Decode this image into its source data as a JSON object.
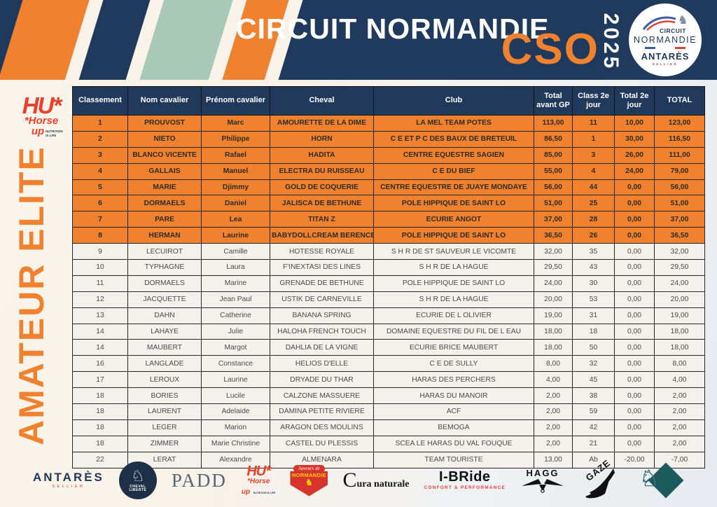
{
  "banner": {
    "title": "CIRCUIT NORMANDIE",
    "event": "CSO",
    "year": "2025",
    "badge": {
      "circuit": "CIRCUIT",
      "normandie": "NORMANDIE",
      "brand": "ANTARÈS",
      "brand_sub": "SELLIER"
    }
  },
  "sidebar": {
    "logo": {
      "monogram": "HU*",
      "word1": "*Horse",
      "word2": "up",
      "tagline": "NUTRITION IS LIFE"
    },
    "category": "AMATEUR ELITE"
  },
  "colors": {
    "navy": "#1f3a5c",
    "orange": "#f0812e",
    "sage": "#a9c9b8",
    "cream": "#f8f2e8"
  },
  "table": {
    "columns": [
      "Classement",
      "Nom cavalier",
      "Prénom cavalier",
      "Cheval",
      "Club",
      "Total avant GP",
      "Class 2e jour",
      "Total 2e jour",
      "TOTAL"
    ],
    "highlight_count": 8,
    "rows": [
      [
        "1",
        "PROUVOST",
        "Marc",
        "AMOURETTE DE LA DIME",
        "LA MEL TEAM POTES",
        "113,00",
        "11",
        "10,00",
        "123,00"
      ],
      [
        "2",
        "NIETO",
        "Philippe",
        "HORN",
        "C E ET P C DES BAUX DE BRETEUIL",
        "86,50",
        "1",
        "30,00",
        "116,50"
      ],
      [
        "3",
        "BLANCO VICENTE",
        "Rafael",
        "HADITA",
        "CENTRE EQUESTRE SAGIEN",
        "85,00",
        "3",
        "26,00",
        "111,00"
      ],
      [
        "4",
        "GALLAIS",
        "Manuel",
        "ELECTRA DU RUISSEAU",
        "C E DU BIEF",
        "55,00",
        "4",
        "24,00",
        "79,00"
      ],
      [
        "5",
        "MARIE",
        "Djimmy",
        "GOLD DE COQUERIE",
        "CENTRE EQUESTRE DE JUAYE MONDAYE",
        "56,00",
        "44",
        "0,00",
        "56,00"
      ],
      [
        "6",
        "DORMAELS",
        "Daniel",
        "JALISCA DE BETHUNE",
        "POLE HIPPIQUE DE SAINT LO",
        "51,00",
        "25",
        "0,00",
        "51,00"
      ],
      [
        "7",
        "PARE",
        "Lea",
        "TITAN Z",
        "ECURIE ANGOT",
        "37,00",
        "28",
        "0,00",
        "37,00"
      ],
      [
        "8",
        "HERMAN",
        "Laurine",
        "BABYDOLLCREAM BERENCE",
        "POLE HIPPIQUE DE SAINT LO",
        "36,50",
        "26",
        "0,00",
        "36,50"
      ],
      [
        "9",
        "LECUIROT",
        "Camille",
        "HOTESSE ROYALE",
        "S H R DE ST SAUVEUR LE VICOMTE",
        "32,00",
        "35",
        "0,00",
        "32,00"
      ],
      [
        "10",
        "TYPHAGNE",
        "Laura",
        "F'INEXTASI DES LINES",
        "S H R DE LA HAGUE",
        "29,50",
        "43",
        "0,00",
        "29,50"
      ],
      [
        "11",
        "DORMAELS",
        "Marine",
        "GRENADE DE BETHUNE",
        "POLE HIPPIQUE DE SAINT LO",
        "24,00",
        "30",
        "0,00",
        "24,00"
      ],
      [
        "12",
        "JACQUETTE",
        "Jean Paul",
        "USTIK DE CARNEVILLE",
        "S H R DE LA HAGUE",
        "20,00",
        "53",
        "0,00",
        "20,00"
      ],
      [
        "13",
        "DAHN",
        "Catherine",
        "BANANA SPRING",
        "ECURIE DE L OLIVIER",
        "19,00",
        "31",
        "0,00",
        "19,00"
      ],
      [
        "14",
        "LAHAYE",
        "Julie",
        "HALOHA FRENCH TOUCH",
        "DOMAINE EQUESTRE DU FIL DE L EAU",
        "18,00",
        "18",
        "0,00",
        "18,00"
      ],
      [
        "14",
        "MAUBERT",
        "Margot",
        "DAHLIA DE LA VIGNE",
        "ECURIE BRICE MAUBERT",
        "18,00",
        "50",
        "0,00",
        "18,00"
      ],
      [
        "16",
        "LANGLADE",
        "Constance",
        "HELIOS D'ELLE",
        "C E DE SULLY",
        "8,00",
        "32",
        "0,00",
        "8,00"
      ],
      [
        "17",
        "LEROUX",
        "Laurine",
        "DRYADE DU THAR",
        "HARAS DES PERCHERS",
        "4,00",
        "45",
        "0,00",
        "4,00"
      ],
      [
        "18",
        "BORIES",
        "Lucile",
        "CALZONE MASSUERE",
        "HARAS DU MANOIR",
        "2,00",
        "38",
        "0,00",
        "2,00"
      ],
      [
        "18",
        "LAURENT",
        "Adelaide",
        "DAMINA PETITE RIVIERE",
        "ACF",
        "2,00",
        "59",
        "0,00",
        "2,00"
      ],
      [
        "18",
        "LEGER",
        "Marion",
        "ARAGON DES MOULINS",
        "BEMOGA",
        "2,00",
        "42",
        "0,00",
        "2,00"
      ],
      [
        "18",
        "ZIMMER",
        "Marie Christine",
        "CASTEL DU PLESSIS",
        "SCEA LE HARAS DU VAL FOUQUE",
        "2,00",
        "21",
        "0,00",
        "2,00"
      ],
      [
        "22",
        "LERAT",
        "Alexandre",
        "ALMENARA",
        "TEAM TOURISTE",
        "13,00",
        "Ab",
        "-20,00",
        "-7,00"
      ]
    ]
  },
  "footer": {
    "sponsors": [
      {
        "id": "antares",
        "label": "ANTARÈS",
        "sub": "SELLIER"
      },
      {
        "id": "cheval-liberte",
        "label": "CHEVAL",
        "sub": "LIBERTÉ"
      },
      {
        "id": "padd",
        "label": "PADD"
      },
      {
        "id": "horse-up",
        "label": "HU*",
        "word1": "*Horse",
        "word2": "up",
        "sub": "NUTRITION IS LIFE"
      },
      {
        "id": "saveurs-normandie",
        "label": "Saveurs de",
        "sub": "NORMANDIE"
      },
      {
        "id": "cura-naturale",
        "label": "C",
        "sub": "ura naturale"
      },
      {
        "id": "ibride",
        "label": "I-BRide",
        "sub": "CONFORT & PERFORMANCE"
      },
      {
        "id": "hagg",
        "label": "HAGG"
      },
      {
        "id": "gaze",
        "label": "GAZE"
      },
      {
        "id": "horse-diamond",
        "label": ""
      }
    ]
  }
}
